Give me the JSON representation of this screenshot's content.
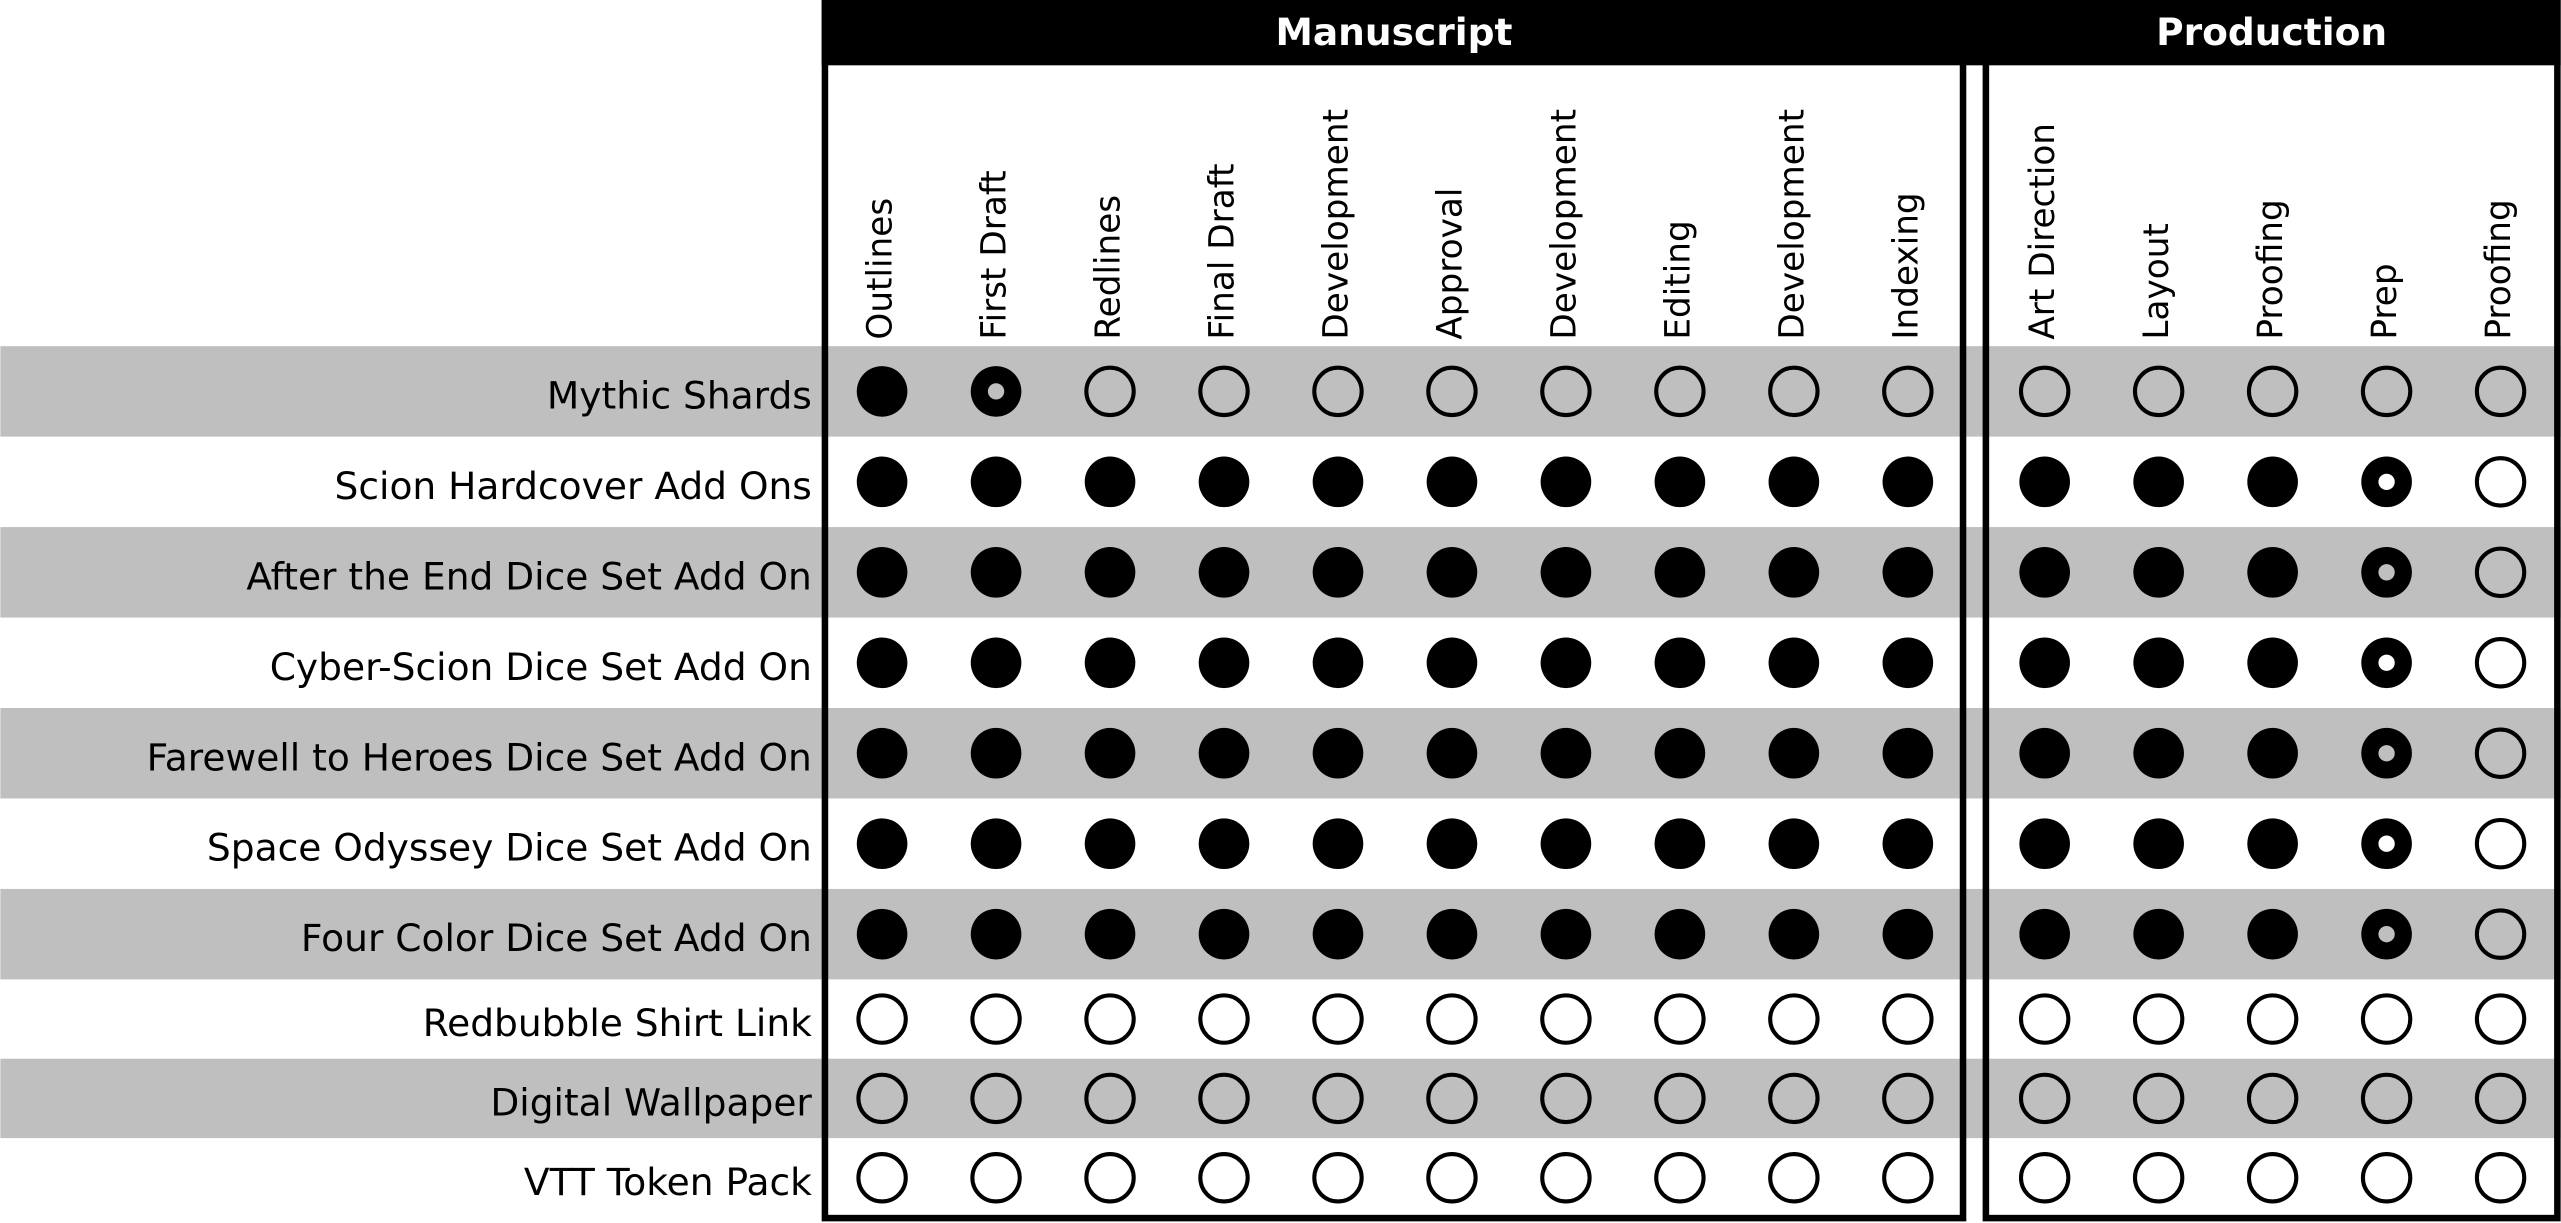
{
  "groups": [
    {
      "title": "Manuscript",
      "columns": [
        "Outlines",
        "First Draft",
        "Redlines",
        "Final Draft",
        "Development",
        "Approval",
        "Development",
        "Editing",
        "Development",
        "Indexing"
      ]
    },
    {
      "title": "Production",
      "columns": [
        "Art Direction",
        "Layout",
        "Proofing",
        "Prep",
        "Proofing"
      ]
    }
  ],
  "rows": [
    {
      "label": "Mythic Shards",
      "status": [
        "complete",
        "in-progress",
        "not-started",
        "not-started",
        "not-started",
        "not-started",
        "not-started",
        "not-started",
        "not-started",
        "not-started",
        "not-started",
        "not-started",
        "not-started",
        "not-started",
        "not-started"
      ]
    },
    {
      "label": "Scion Hardcover Add Ons",
      "status": [
        "complete",
        "complete",
        "complete",
        "complete",
        "complete",
        "complete",
        "complete",
        "complete",
        "complete",
        "complete",
        "complete",
        "complete",
        "complete",
        "in-progress",
        "not-started"
      ]
    },
    {
      "label": "After the End Dice Set Add On",
      "status": [
        "complete",
        "complete",
        "complete",
        "complete",
        "complete",
        "complete",
        "complete",
        "complete",
        "complete",
        "complete",
        "complete",
        "complete",
        "complete",
        "in-progress",
        "not-started"
      ]
    },
    {
      "label": "Cyber-Scion Dice Set Add On",
      "status": [
        "complete",
        "complete",
        "complete",
        "complete",
        "complete",
        "complete",
        "complete",
        "complete",
        "complete",
        "complete",
        "complete",
        "complete",
        "complete",
        "in-progress",
        "not-started"
      ]
    },
    {
      "label": "Farewell to Heroes Dice Set Add On",
      "status": [
        "complete",
        "complete",
        "complete",
        "complete",
        "complete",
        "complete",
        "complete",
        "complete",
        "complete",
        "complete",
        "complete",
        "complete",
        "complete",
        "in-progress",
        "not-started"
      ]
    },
    {
      "label": "Space Odyssey Dice Set Add On",
      "status": [
        "complete",
        "complete",
        "complete",
        "complete",
        "complete",
        "complete",
        "complete",
        "complete",
        "complete",
        "complete",
        "complete",
        "complete",
        "complete",
        "in-progress",
        "not-started"
      ]
    },
    {
      "label": "Four Color Dice Set Add On",
      "status": [
        "complete",
        "complete",
        "complete",
        "complete",
        "complete",
        "complete",
        "complete",
        "complete",
        "complete",
        "complete",
        "complete",
        "complete",
        "complete",
        "in-progress",
        "not-started"
      ]
    },
    {
      "label": "Redbubble Shirt Link",
      "status": [
        "not-started",
        "not-started",
        "not-started",
        "not-started",
        "not-started",
        "not-started",
        "not-started",
        "not-started",
        "not-started",
        "not-started",
        "not-started",
        "not-started",
        "not-started",
        "not-started",
        "not-started"
      ]
    },
    {
      "label": "Digital Wallpaper",
      "status": [
        "not-started",
        "not-started",
        "not-started",
        "not-started",
        "not-started",
        "not-started",
        "not-started",
        "not-started",
        "not-started",
        "not-started",
        "not-started",
        "not-started",
        "not-started",
        "not-started",
        "not-started"
      ]
    },
    {
      "label": "VTT Token Pack",
      "status": [
        "not-started",
        "not-started",
        "not-started",
        "not-started",
        "not-started",
        "not-started",
        "not-started",
        "not-started",
        "not-started",
        "not-started",
        "not-started",
        "not-started",
        "not-started",
        "not-started",
        "not-started"
      ]
    }
  ]
}
